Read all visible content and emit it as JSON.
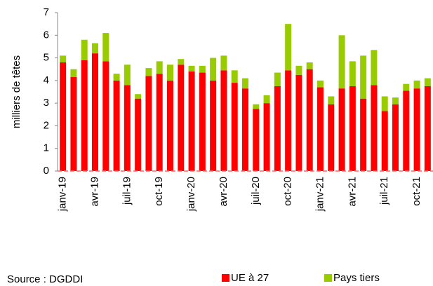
{
  "chart_data": {
    "type": "stacked_bar",
    "y_label": "milliers de têtes",
    "source": "Source : DGDDI",
    "categories": [
      "janv-19",
      null,
      null,
      "avr-19",
      null,
      null,
      "juil-19",
      null,
      null,
      "oct-19",
      null,
      null,
      "janv-20",
      null,
      null,
      "avr-20",
      null,
      null,
      "juil-20",
      null,
      null,
      "oct-20",
      null,
      null,
      "janv-21",
      null,
      null,
      "avr-21",
      null,
      null,
      "juil-21",
      null,
      null,
      "oct-21",
      null
    ],
    "series": [
      {
        "name": "UE à 27",
        "color": "#ff0000",
        "values": [
          4.8,
          4.15,
          4.9,
          5.2,
          4.85,
          4.0,
          3.8,
          3.2,
          4.2,
          4.3,
          4.0,
          4.7,
          4.4,
          4.35,
          4.0,
          4.45,
          3.9,
          3.65,
          2.75,
          3.0,
          3.75,
          4.45,
          4.25,
          4.5,
          3.7,
          2.95,
          3.65,
          3.75,
          3.2,
          3.8,
          2.65,
          2.95,
          3.55,
          3.65,
          3.75
        ]
      },
      {
        "name": "Pays tiers",
        "color": "#99cc00",
        "values": [
          0.3,
          0.35,
          0.9,
          0.45,
          1.25,
          0.3,
          0.9,
          0.2,
          0.35,
          0.55,
          0.7,
          0.25,
          0.25,
          0.3,
          1.0,
          0.65,
          0.55,
          0.45,
          0.2,
          0.35,
          0.6,
          2.05,
          0.4,
          0.3,
          0.3,
          0.35,
          2.35,
          1.1,
          1.9,
          1.55,
          0.65,
          0.3,
          0.3,
          0.35,
          0.35
        ]
      }
    ],
    "ylim": [
      0,
      7
    ],
    "yticks": [
      0,
      1,
      2,
      3,
      4,
      5,
      6,
      7
    ],
    "grid": false,
    "legend": "bottom"
  }
}
